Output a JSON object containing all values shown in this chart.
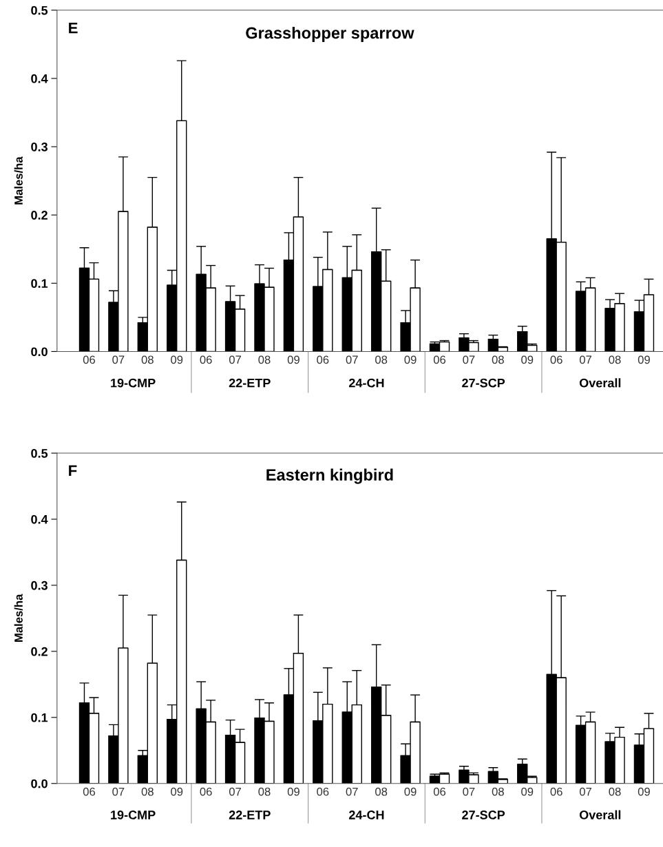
{
  "chart_data": [
    {
      "type": "bar",
      "title": "Grasshopper sparrow",
      "ylabel": "Males/ha",
      "annotations": [
        "E",
        "19-CMP",
        "22-ETP",
        "24-CH",
        "27-SCP",
        "Overall"
      ],
      "categories": [
        "06",
        "07",
        "08",
        "09",
        "06",
        "07",
        "08",
        "09",
        "06",
        "07",
        "08",
        "09",
        "06",
        "07",
        "08",
        "09",
        "06",
        "07",
        "08",
        "09"
      ],
      "ylim": [
        0,
        0.5
      ],
      "yticks": [
        {
          "value": 0,
          "label": "0.0"
        },
        0.1,
        0.2,
        0.3,
        0.4,
        0.5
      ],
      "grid": false,
      "legend": false,
      "series": [
        {
          "color": "#000000",
          "values": [
            0.122,
            0.072,
            0.042,
            0.097,
            0.113,
            0.073,
            0.099,
            0.134,
            0.095,
            0.108,
            0.146,
            0.042,
            0.011,
            0.02,
            0.018,
            0.029,
            0.165,
            0.088,
            0.063,
            0.058
          ],
          "errors": [
            [
              0.122,
              0.152
            ],
            [
              0.072,
              0.089
            ],
            [
              0.042,
              0.05
            ],
            [
              0.097,
              0.119
            ],
            [
              0.113,
              0.154
            ],
            [
              0.073,
              0.096
            ],
            [
              0.099,
              0.127
            ],
            [
              0.134,
              0.174
            ],
            [
              0.095,
              0.138
            ],
            [
              0.108,
              0.154
            ],
            [
              0.146,
              0.21
            ],
            [
              0.042,
              0.06
            ],
            [
              0.011,
              0.014
            ],
            [
              0.02,
              0.026
            ],
            [
              0.018,
              0.024
            ],
            [
              0.029,
              0.037
            ],
            [
              0.165,
              0.292
            ],
            [
              0.088,
              0.102
            ],
            [
              0.063,
              0.076
            ],
            [
              0.058,
              0.075
            ]
          ]
        },
        {
          "color": "#ffffff",
          "values": [
            0.106,
            0.205,
            0.182,
            0.338,
            0.093,
            0.062,
            0.094,
            0.197,
            0.12,
            0.119,
            0.103,
            0.093,
            0.014,
            0.013,
            0.006,
            0.009,
            0.16,
            0.093,
            0.07,
            0.083
          ],
          "errors": [
            [
              0.106,
              0.13
            ],
            [
              0.205,
              0.285
            ],
            [
              0.182,
              0.255
            ],
            [
              0.338,
              0.426
            ],
            [
              0.093,
              0.126
            ],
            [
              0.062,
              0.082
            ],
            [
              0.094,
              0.122
            ],
            [
              0.197,
              0.255
            ],
            [
              0.12,
              0.175
            ],
            [
              0.119,
              0.171
            ],
            [
              0.103,
              0.149
            ],
            [
              0.093,
              0.134
            ],
            [
              0.014,
              0.016
            ],
            [
              0.013,
              0.016
            ],
            [
              0.006,
              0.007
            ],
            [
              0.009,
              0.011
            ],
            [
              0.16,
              0.284
            ],
            [
              0.093,
              0.108
            ],
            [
              0.07,
              0.085
            ],
            [
              0.083,
              0.106
            ]
          ]
        }
      ]
    },
    {
      "type": "bar",
      "title": "Eastern kingbird",
      "ylabel": "Males/ha",
      "annotations": [
        "F",
        "19-CMP",
        "22-ETP",
        "24-CH",
        "27-SCP",
        "Overall"
      ],
      "categories": [
        "06",
        "07",
        "08",
        "09",
        "06",
        "07",
        "08",
        "09",
        "06",
        "07",
        "08",
        "09",
        "06",
        "07",
        "08",
        "09",
        "06",
        "07",
        "08",
        "09"
      ],
      "ylim": [
        0,
        0.5
      ],
      "yticks": [
        {
          "value": 0,
          "label": "0.0"
        },
        0.1,
        0.2,
        0.3,
        0.4,
        0.5
      ],
      "grid": false,
      "legend": false,
      "series": [
        {
          "color": "#000000",
          "values": [
            0.122,
            0.072,
            0.042,
            0.097,
            0.113,
            0.073,
            0.099,
            0.134,
            0.095,
            0.108,
            0.146,
            0.042,
            0.011,
            0.02,
            0.018,
            0.029,
            0.165,
            0.088,
            0.063,
            0.058
          ],
          "errors": [
            [
              0.122,
              0.152
            ],
            [
              0.072,
              0.089
            ],
            [
              0.042,
              0.05
            ],
            [
              0.097,
              0.119
            ],
            [
              0.113,
              0.154
            ],
            [
              0.073,
              0.096
            ],
            [
              0.099,
              0.127
            ],
            [
              0.134,
              0.174
            ],
            [
              0.095,
              0.138
            ],
            [
              0.108,
              0.154
            ],
            [
              0.146,
              0.21
            ],
            [
              0.042,
              0.06
            ],
            [
              0.011,
              0.014
            ],
            [
              0.02,
              0.026
            ],
            [
              0.018,
              0.024
            ],
            [
              0.029,
              0.037
            ],
            [
              0.165,
              0.292
            ],
            [
              0.088,
              0.102
            ],
            [
              0.063,
              0.076
            ],
            [
              0.058,
              0.075
            ]
          ]
        },
        {
          "color": "#ffffff",
          "values": [
            0.106,
            0.205,
            0.182,
            0.338,
            0.093,
            0.062,
            0.094,
            0.197,
            0.12,
            0.119,
            0.103,
            0.093,
            0.014,
            0.013,
            0.006,
            0.009,
            0.16,
            0.093,
            0.07,
            0.083
          ],
          "errors": [
            [
              0.106,
              0.13
            ],
            [
              0.205,
              0.285
            ],
            [
              0.182,
              0.255
            ],
            [
              0.338,
              0.426
            ],
            [
              0.093,
              0.126
            ],
            [
              0.062,
              0.082
            ],
            [
              0.094,
              0.122
            ],
            [
              0.197,
              0.255
            ],
            [
              0.12,
              0.175
            ],
            [
              0.119,
              0.171
            ],
            [
              0.103,
              0.149
            ],
            [
              0.093,
              0.134
            ],
            [
              0.014,
              0.016
            ],
            [
              0.013,
              0.016
            ],
            [
              0.006,
              0.007
            ],
            [
              0.009,
              0.011
            ],
            [
              0.16,
              0.284
            ],
            [
              0.093,
              0.108
            ],
            [
              0.07,
              0.085
            ],
            [
              0.083,
              0.106
            ]
          ]
        }
      ]
    }
  ]
}
